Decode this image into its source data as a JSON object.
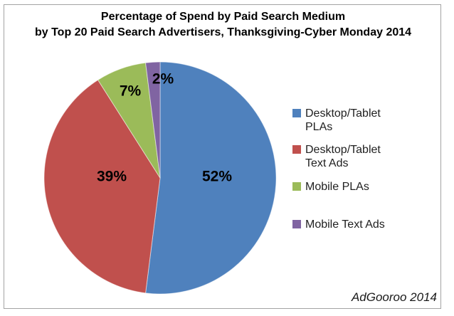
{
  "chart_data": {
    "type": "pie",
    "title": "Percentage of Spend by Paid Search Medium",
    "subtitle": "by Top 20 Paid Search Advertisers, Thanksgiving-Cyber Monday 2014",
    "labels": [
      "Desktop/Tablet PLAs",
      "Desktop/Tablet Text Ads",
      "Mobile PLAs",
      "Mobile Text Ads"
    ],
    "values": [
      52,
      39,
      7,
      2
    ],
    "value_labels": [
      "52%",
      "39%",
      "7%",
      "2%"
    ],
    "colors": [
      "#4f81bd",
      "#c0504d",
      "#9bbb59",
      "#8064a2"
    ],
    "legend_position": "right",
    "start_angle_deg": 0,
    "direction": "clockwise",
    "source_note": "AdGooroo 2014"
  }
}
